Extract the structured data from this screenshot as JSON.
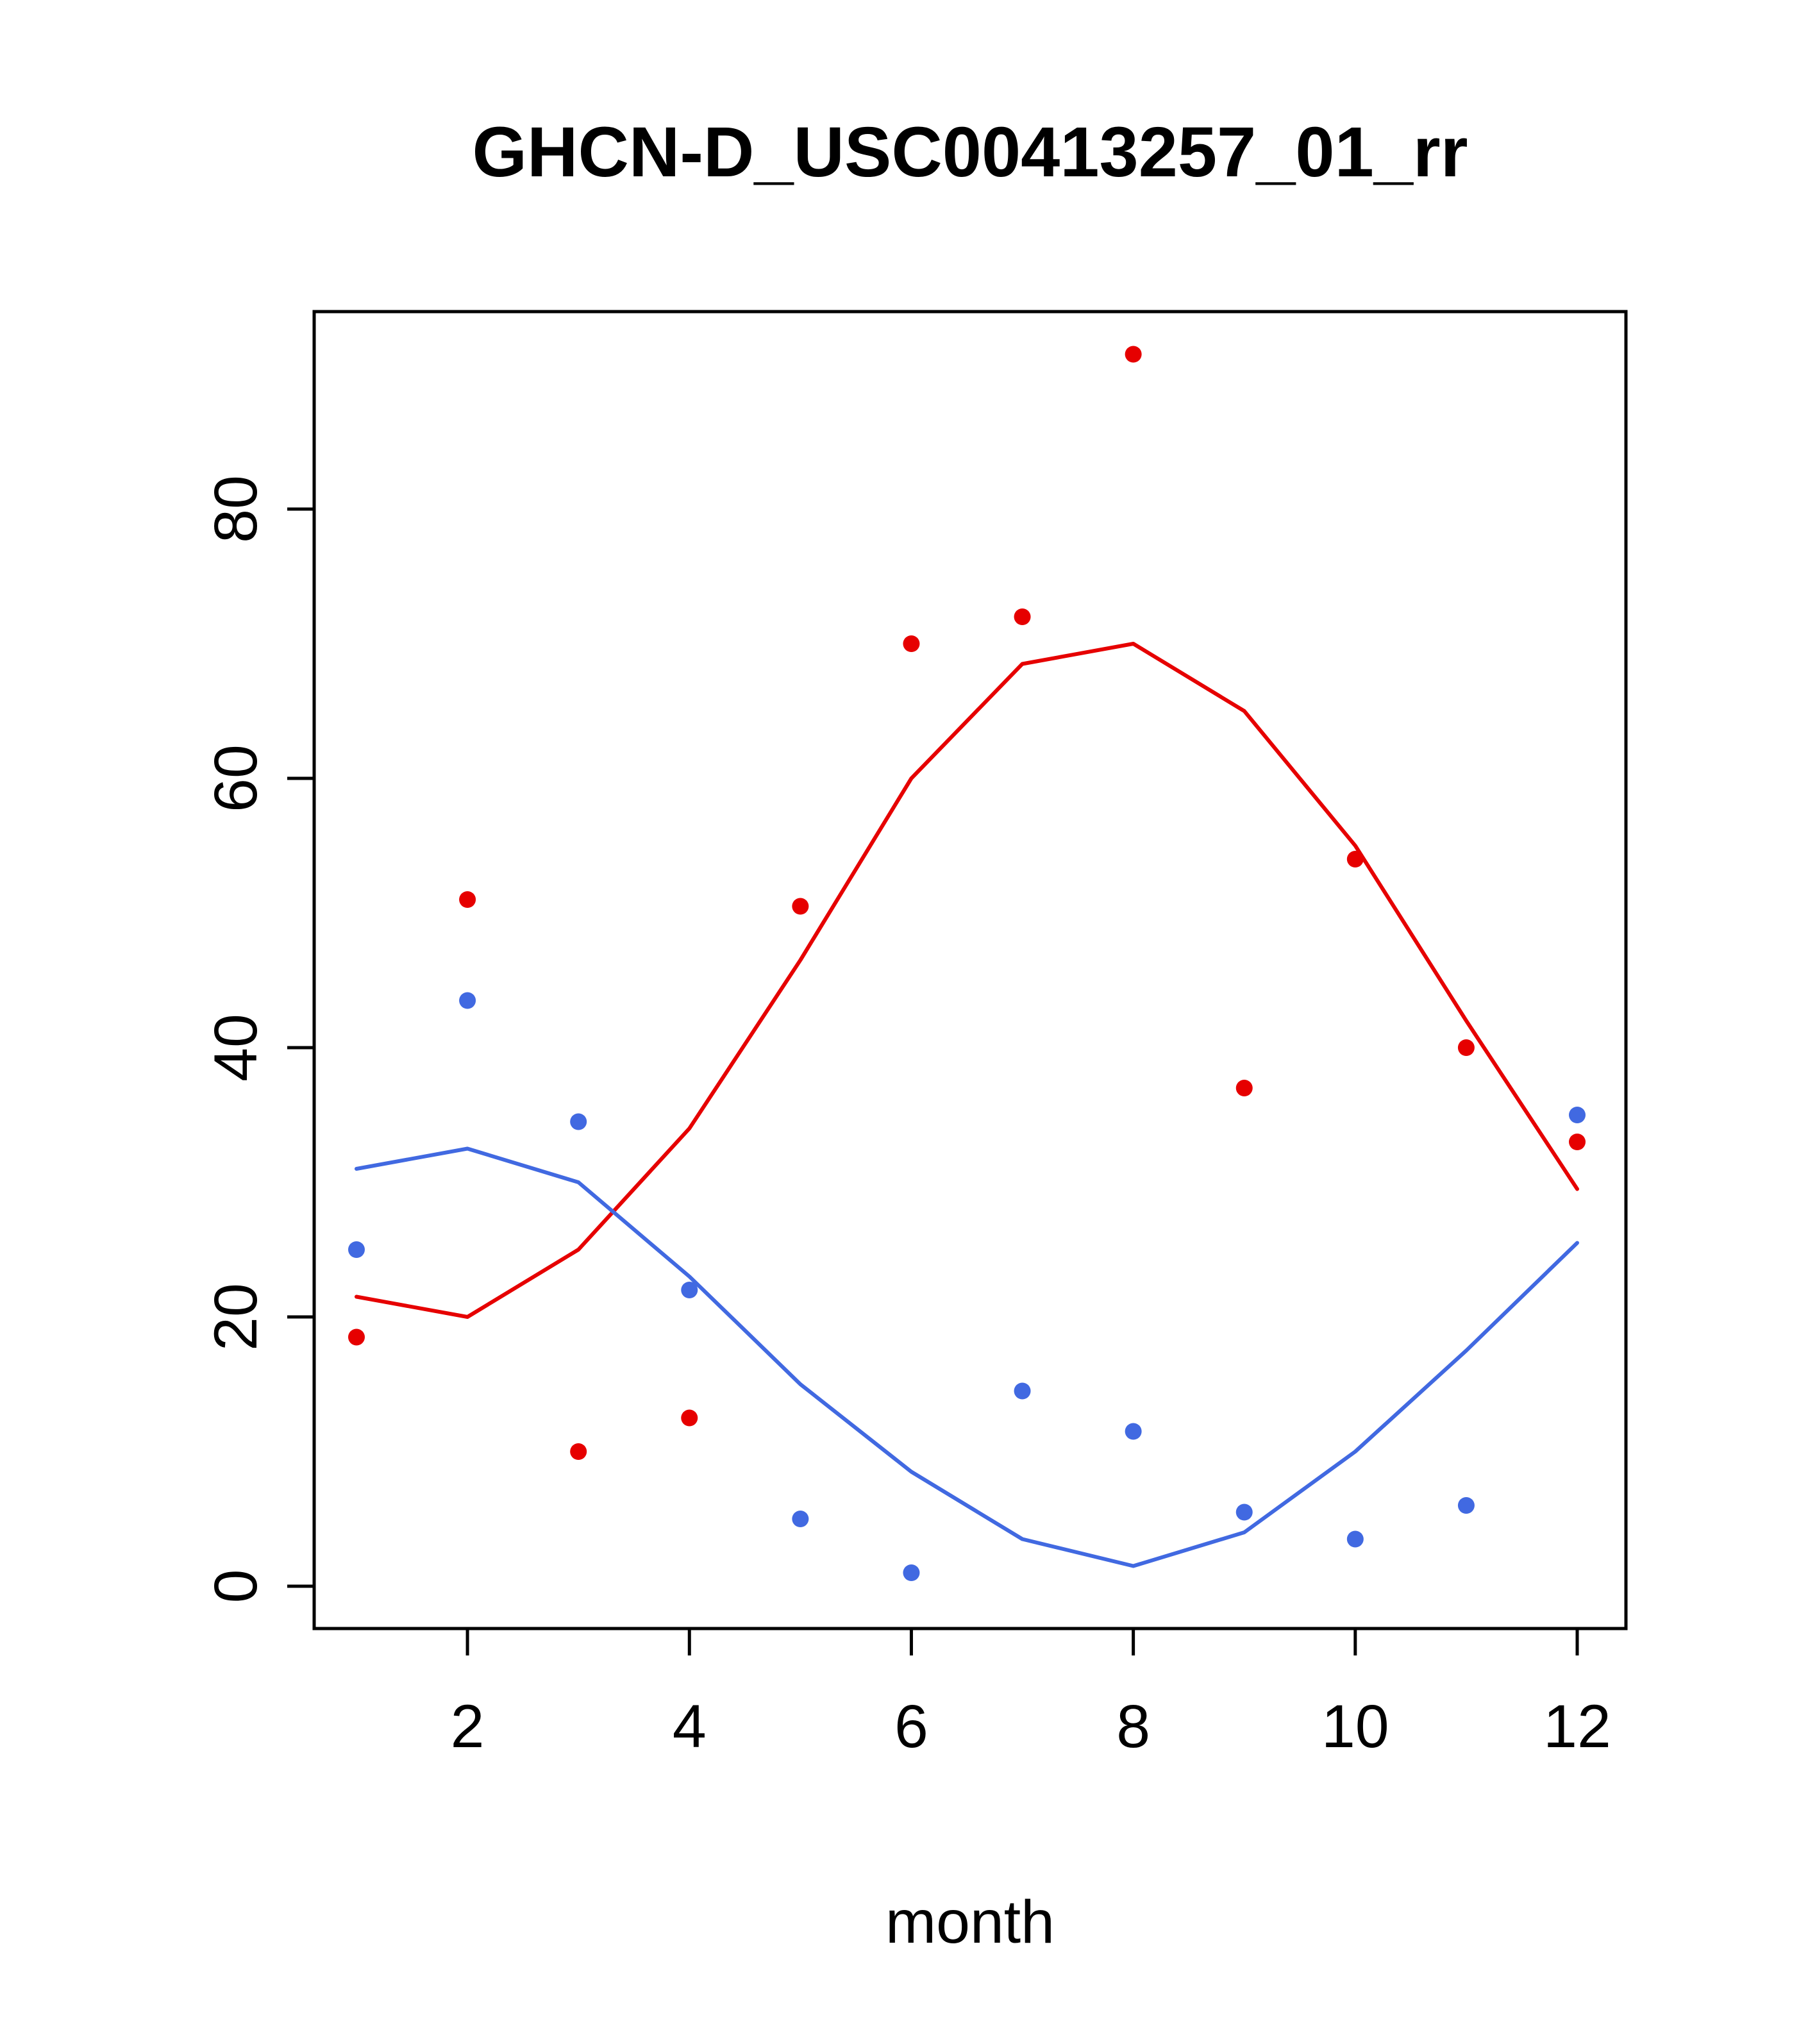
{
  "chart_data": {
    "type": "scatter",
    "title": "GHCN-D_USC00413257_01_rr",
    "xlabel": "month",
    "ylabel": "",
    "xlim": [
      1,
      12
    ],
    "ylim": [
      0,
      93
    ],
    "x_ticks": [
      2,
      4,
      6,
      8,
      10,
      12
    ],
    "y_ticks": [
      0,
      20,
      40,
      60,
      80
    ],
    "grid": "off",
    "legend": "none",
    "colors": {
      "red_series": "#e60000",
      "blue_series": "#4169e1",
      "axis": "#000000",
      "background": "#ffffff"
    },
    "x": [
      1,
      2,
      3,
      4,
      5,
      6,
      7,
      8,
      9,
      10,
      11,
      12
    ],
    "series": [
      {
        "name": "red-points",
        "kind": "points",
        "color": "#e60000",
        "values": [
          18.5,
          51,
          10,
          12.5,
          50.5,
          70,
          72,
          91.5,
          37,
          54,
          40,
          33
        ]
      },
      {
        "name": "blue-points",
        "kind": "points",
        "color": "#4169e1",
        "values": [
          25,
          43.5,
          34.5,
          22,
          5,
          1,
          14.5,
          11.5,
          5.5,
          3.5,
          6,
          35
        ]
      },
      {
        "name": "red-trend",
        "kind": "line",
        "color": "#e60000",
        "values": [
          21.5,
          20,
          25,
          34,
          46.5,
          60,
          68.5,
          70,
          65,
          55,
          42,
          29.5
        ]
      },
      {
        "name": "blue-trend",
        "kind": "line",
        "color": "#4169e1",
        "values": [
          31,
          32.5,
          30,
          23,
          15,
          8.5,
          3.5,
          1.5,
          4,
          10,
          17.5,
          25.5
        ]
      }
    ]
  }
}
